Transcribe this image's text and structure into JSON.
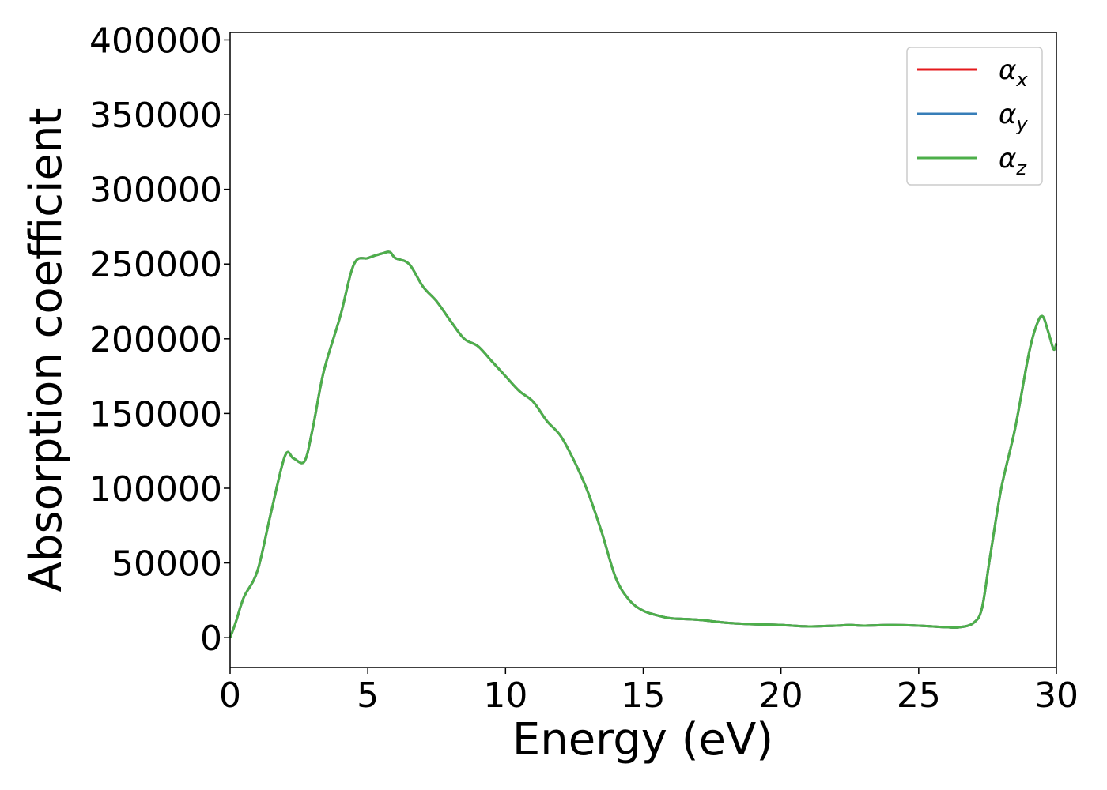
{
  "chart_data": {
    "type": "line",
    "xlabel": "Energy (eV)",
    "ylabel": "Absorption coefficient",
    "xlim": [
      0,
      30
    ],
    "ylim": [
      -20000,
      405000
    ],
    "xticks": [
      0,
      5,
      10,
      15,
      20,
      25,
      30
    ],
    "yticks": [
      0,
      50000,
      100000,
      150000,
      200000,
      250000,
      300000,
      350000,
      400000
    ],
    "grid": false,
    "legend_position": "top-right",
    "series": [
      {
        "name": "αx",
        "sym": "α",
        "sub": "x",
        "color": "#e41a1c"
      },
      {
        "name": "αy",
        "sym": "α",
        "sub": "y",
        "color": "#377eb8"
      },
      {
        "name": "αz",
        "sym": "α",
        "sub": "z",
        "color": "#4daf4a"
      }
    ],
    "x": [
      0,
      0.2,
      0.5,
      1.0,
      1.5,
      2.0,
      2.3,
      2.7,
      3.0,
      3.4,
      4.0,
      4.5,
      5.0,
      5.5,
      5.8,
      6.0,
      6.5,
      7.0,
      7.5,
      8.0,
      8.5,
      9.0,
      9.5,
      10.0,
      10.5,
      11.0,
      11.5,
      12.0,
      12.5,
      13.0,
      13.5,
      14.0,
      14.5,
      15.0,
      15.5,
      16.0,
      17.0,
      18.0,
      19.0,
      20.0,
      21.0,
      22.0,
      22.5,
      23.0,
      24.0,
      25.0,
      26.0,
      26.5,
      27.0,
      27.3,
      27.6,
      28.0,
      28.5,
      29.0,
      29.3,
      29.5,
      29.7,
      29.9,
      30.0
    ],
    "y": [
      0,
      10000,
      27000,
      45000,
      85000,
      122000,
      120000,
      118000,
      140000,
      178000,
      215000,
      250000,
      254000,
      257000,
      258000,
      254000,
      250000,
      235000,
      225000,
      212000,
      200000,
      195000,
      185000,
      175000,
      165000,
      158000,
      145000,
      135000,
      118000,
      97000,
      70000,
      40000,
      25000,
      18000,
      15000,
      13000,
      12000,
      10000,
      9000,
      8500,
      7500,
      8000,
      8500,
      8000,
      8500,
      8000,
      7000,
      7000,
      10000,
      20000,
      55000,
      100000,
      140000,
      190000,
      210000,
      215000,
      205000,
      193000,
      197000
    ]
  }
}
